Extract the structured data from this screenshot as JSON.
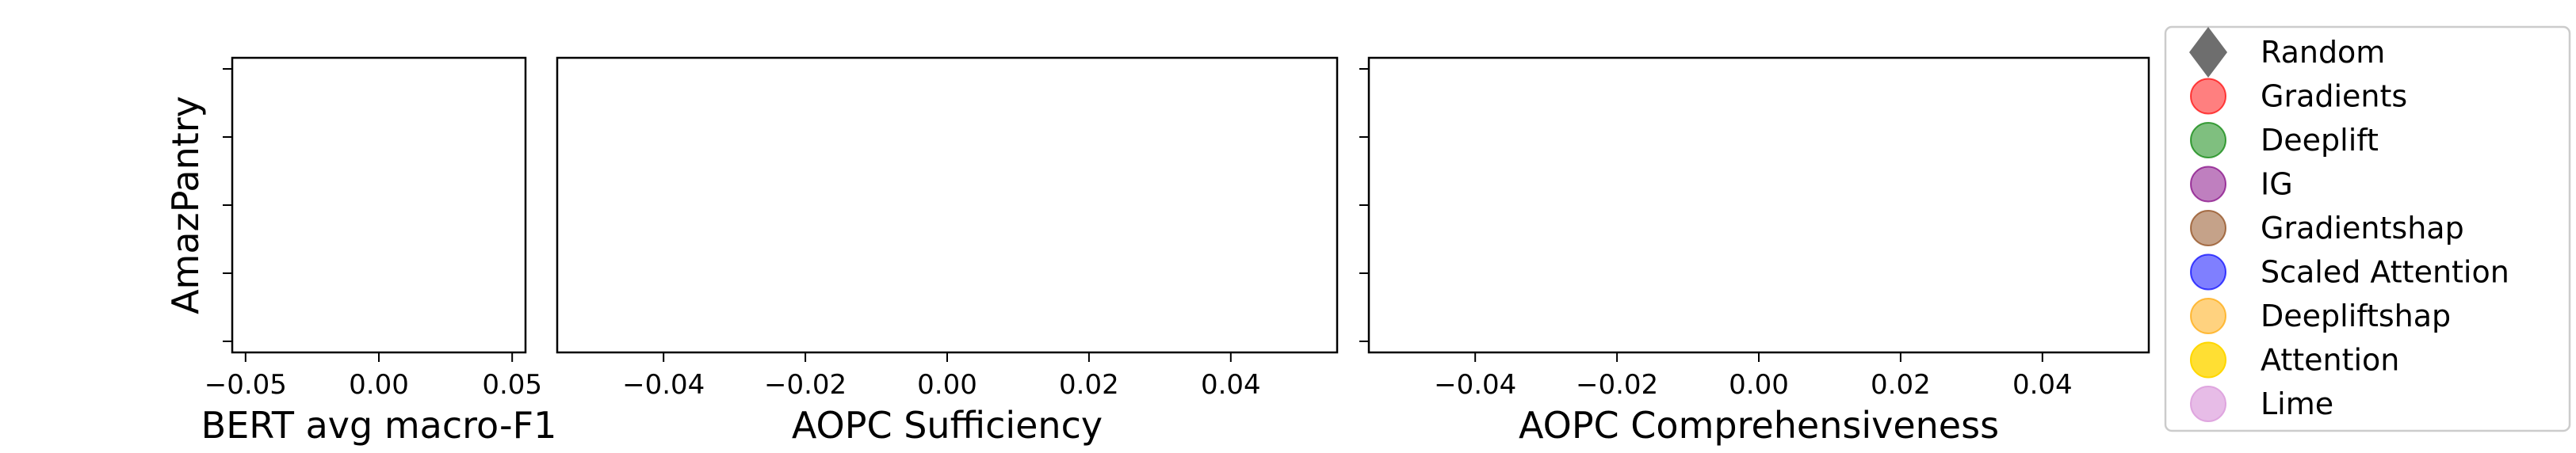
{
  "chart_data": [
    {
      "type": "scatter",
      "ylabel": "AmazPantry",
      "xlabel": "BERT avg macro-F1",
      "xlim": [
        -0.055,
        0.055
      ],
      "xticks": [
        -0.05,
        0.0,
        0.05
      ],
      "xtick_labels": [
        "−0.05",
        "0.00",
        "0.05"
      ],
      "ytick_count": 5,
      "ytick_labels_shown": false,
      "series": []
    },
    {
      "type": "scatter",
      "xlabel": "AOPC Sufficiency",
      "xlim": [
        -0.055,
        0.055
      ],
      "xticks": [
        -0.04,
        -0.02,
        0.0,
        0.02,
        0.04
      ],
      "xtick_labels": [
        "−0.04",
        "−0.02",
        "0.00",
        "0.02",
        "0.04"
      ],
      "ytick_count": 0,
      "series": []
    },
    {
      "type": "scatter",
      "xlabel": "AOPC Comprehensiveness",
      "xlim": [
        -0.055,
        0.055
      ],
      "xticks": [
        -0.04,
        -0.02,
        0.0,
        0.02,
        0.04
      ],
      "xtick_labels": [
        "−0.04",
        "−0.02",
        "0.00",
        "0.02",
        "0.04"
      ],
      "ytick_count": 5,
      "ytick_labels_shown": false,
      "series": []
    }
  ],
  "legend": {
    "placement": "right",
    "entries": [
      {
        "label": "Random",
        "color": "#555555",
        "marker": "diamond",
        "opacity": 0.85
      },
      {
        "label": "Gradients",
        "color": "#ff0000",
        "marker": "circle",
        "opacity": 0.5
      },
      {
        "label": "Deeplift",
        "color": "#008000",
        "marker": "circle",
        "opacity": 0.5
      },
      {
        "label": "IG",
        "color": "#800080",
        "marker": "circle",
        "opacity": 0.5
      },
      {
        "label": "Gradientshap",
        "color": "#8b4513",
        "marker": "circle",
        "opacity": 0.5
      },
      {
        "label": "Scaled Attention",
        "color": "#0000ff",
        "marker": "circle",
        "opacity": 0.5
      },
      {
        "label": "Deepliftshap",
        "color": "#ffa500",
        "marker": "circle",
        "opacity": 0.5
      },
      {
        "label": "Attention",
        "color": "#ffd700",
        "marker": "circle",
        "opacity": 0.8
      },
      {
        "label": "Lime",
        "color": "#dda0dd",
        "marker": "circle",
        "opacity": 0.7
      }
    ]
  }
}
